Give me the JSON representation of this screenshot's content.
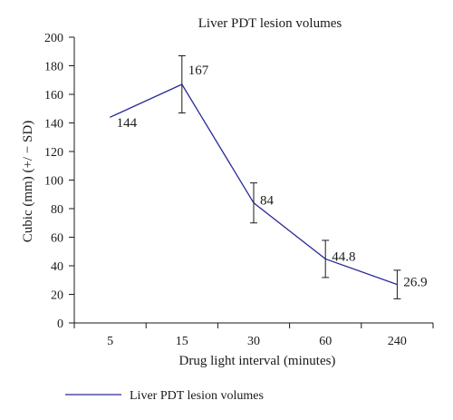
{
  "chart_data": {
    "type": "line",
    "title": "Liver PDT lesion volumes",
    "xlabel": "Drug light interval (minutes)",
    "ylabel": "Cubic (mm) (+/ − SD)",
    "categories": [
      "5",
      "15",
      "30",
      "60",
      "240"
    ],
    "series": [
      {
        "name": "Liver PDT lesion volumes",
        "values": [
          144,
          167,
          84,
          44.8,
          26.9
        ],
        "error": [
          null,
          20,
          14,
          13,
          10
        ],
        "labels": [
          "144",
          "167",
          "84",
          "44.8",
          "26.9"
        ]
      }
    ],
    "ylim": [
      0,
      200
    ],
    "yticks": [
      0,
      20,
      40,
      60,
      80,
      100,
      120,
      140,
      160,
      180,
      200
    ],
    "grid": false,
    "legend": "bottom-left",
    "line_color": "#2b2b9a",
    "error_color": "#1a1a1a"
  }
}
